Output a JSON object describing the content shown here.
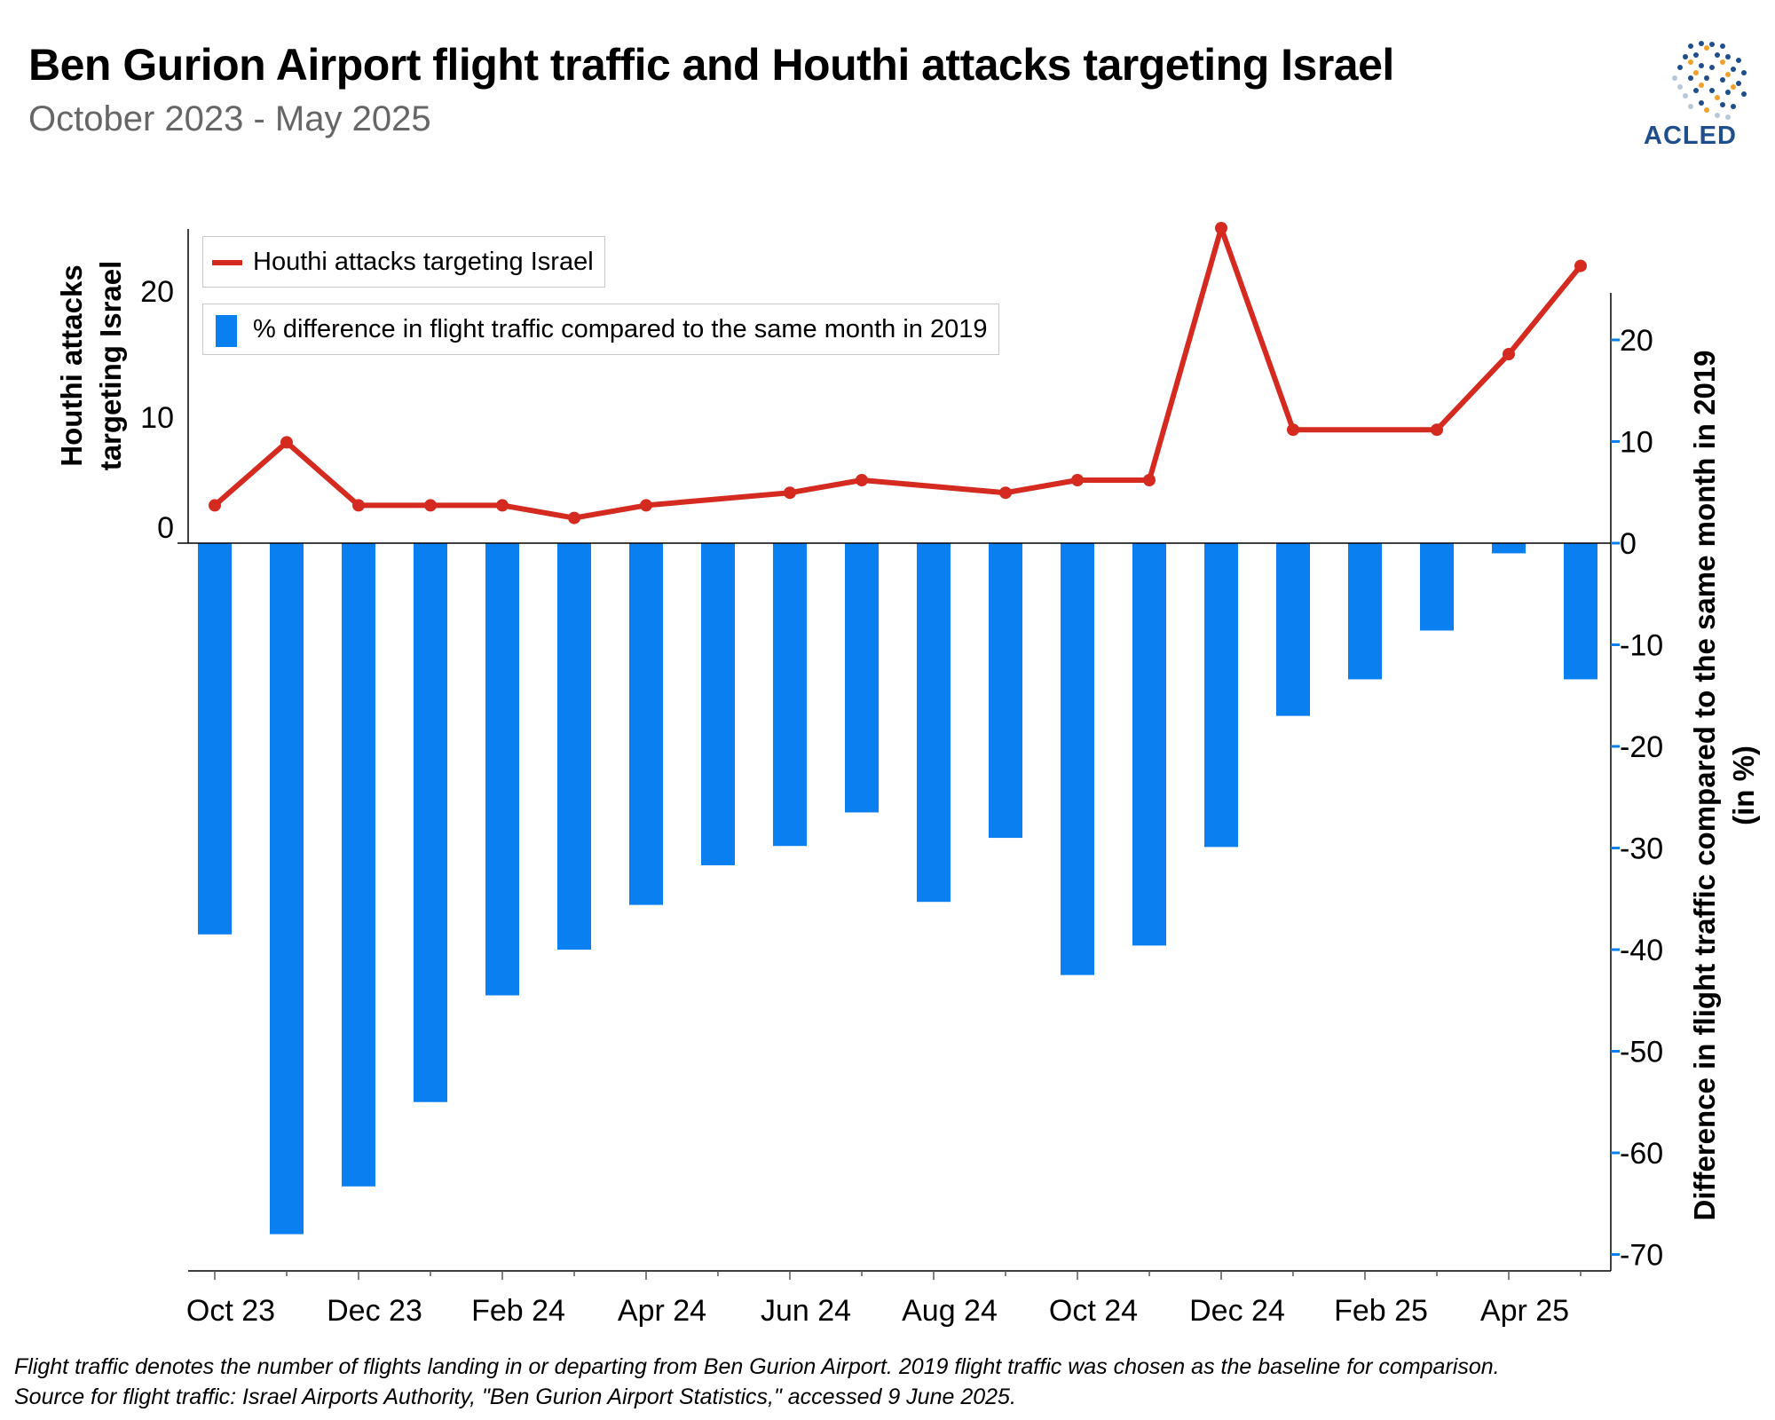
{
  "title": "Ben Gurion Airport flight traffic and Houthi attacks targeting Israel",
  "subtitle": "October 2023 - May 2025",
  "logo_text": "ACLED",
  "footnote": [
    "Flight traffic denotes the number of flights landing in or departing from Ben Gurion Airport. 2019 flight traffic was chosen as the baseline for comparison.",
    "Source for flight traffic: Israel Airports Authority, \"Ben Gurion Airport Statistics,\" accessed 9 June 2025."
  ],
  "colors": {
    "line": "#d42a1f",
    "bar": "#0a7ff0",
    "title": "#000000",
    "subtitle": "#666666",
    "logo": "#1f4e8c"
  },
  "chart_data": {
    "type": "bar+line",
    "months": [
      "Oct 23",
      "Nov 23",
      "Dec 23",
      "Jan 24",
      "Feb 24",
      "Mar 24",
      "Apr 24",
      "May 24",
      "Jun 24",
      "Jul 24",
      "Aug 24",
      "Sep 24",
      "Oct 24",
      "Nov 24",
      "Dec 24",
      "Jan 25",
      "Feb 25",
      "Mar 25",
      "Apr 25",
      "May 25"
    ],
    "x_tick_labels": [
      "Oct 23",
      "Dec 23",
      "Feb 24",
      "Apr 24",
      "Jun 24",
      "Aug 24",
      "Oct 24",
      "Dec 24",
      "Feb 25",
      "Apr 25"
    ],
    "series": [
      {
        "name": "Houthi attacks targeting Israel",
        "type": "line",
        "axis": "left",
        "values": [
          3,
          8,
          3,
          3,
          3,
          2,
          3,
          null,
          4,
          5,
          null,
          4,
          5,
          5,
          25,
          9,
          null,
          9,
          15,
          22
        ]
      },
      {
        "name": "% difference in flight traffic compared to the same month in 2019",
        "type": "bar",
        "axis": "right",
        "values": [
          -38.5,
          -68,
          -63.3,
          -55,
          -44.5,
          -40,
          -35.6,
          -31.7,
          -29.8,
          -26.5,
          -35.3,
          -29,
          -42.5,
          -39.6,
          -29.9,
          -17,
          -13.4,
          -8.6,
          -1,
          -13.4
        ]
      }
    ],
    "left_axis": {
      "label": [
        "Houthi attacks",
        "targeting Israel"
      ],
      "ticks": [
        0,
        10,
        20
      ]
    },
    "right_axis": {
      "label": [
        "Difference in flight traffic compared to the same month in 2019",
        "(in %)"
      ],
      "ticks": [
        20,
        10,
        0,
        -10,
        -20,
        -30,
        -40,
        -50,
        -60,
        -70
      ],
      "ylim": [
        -72,
        25
      ]
    },
    "legend_position": "top-left",
    "grid": false
  }
}
